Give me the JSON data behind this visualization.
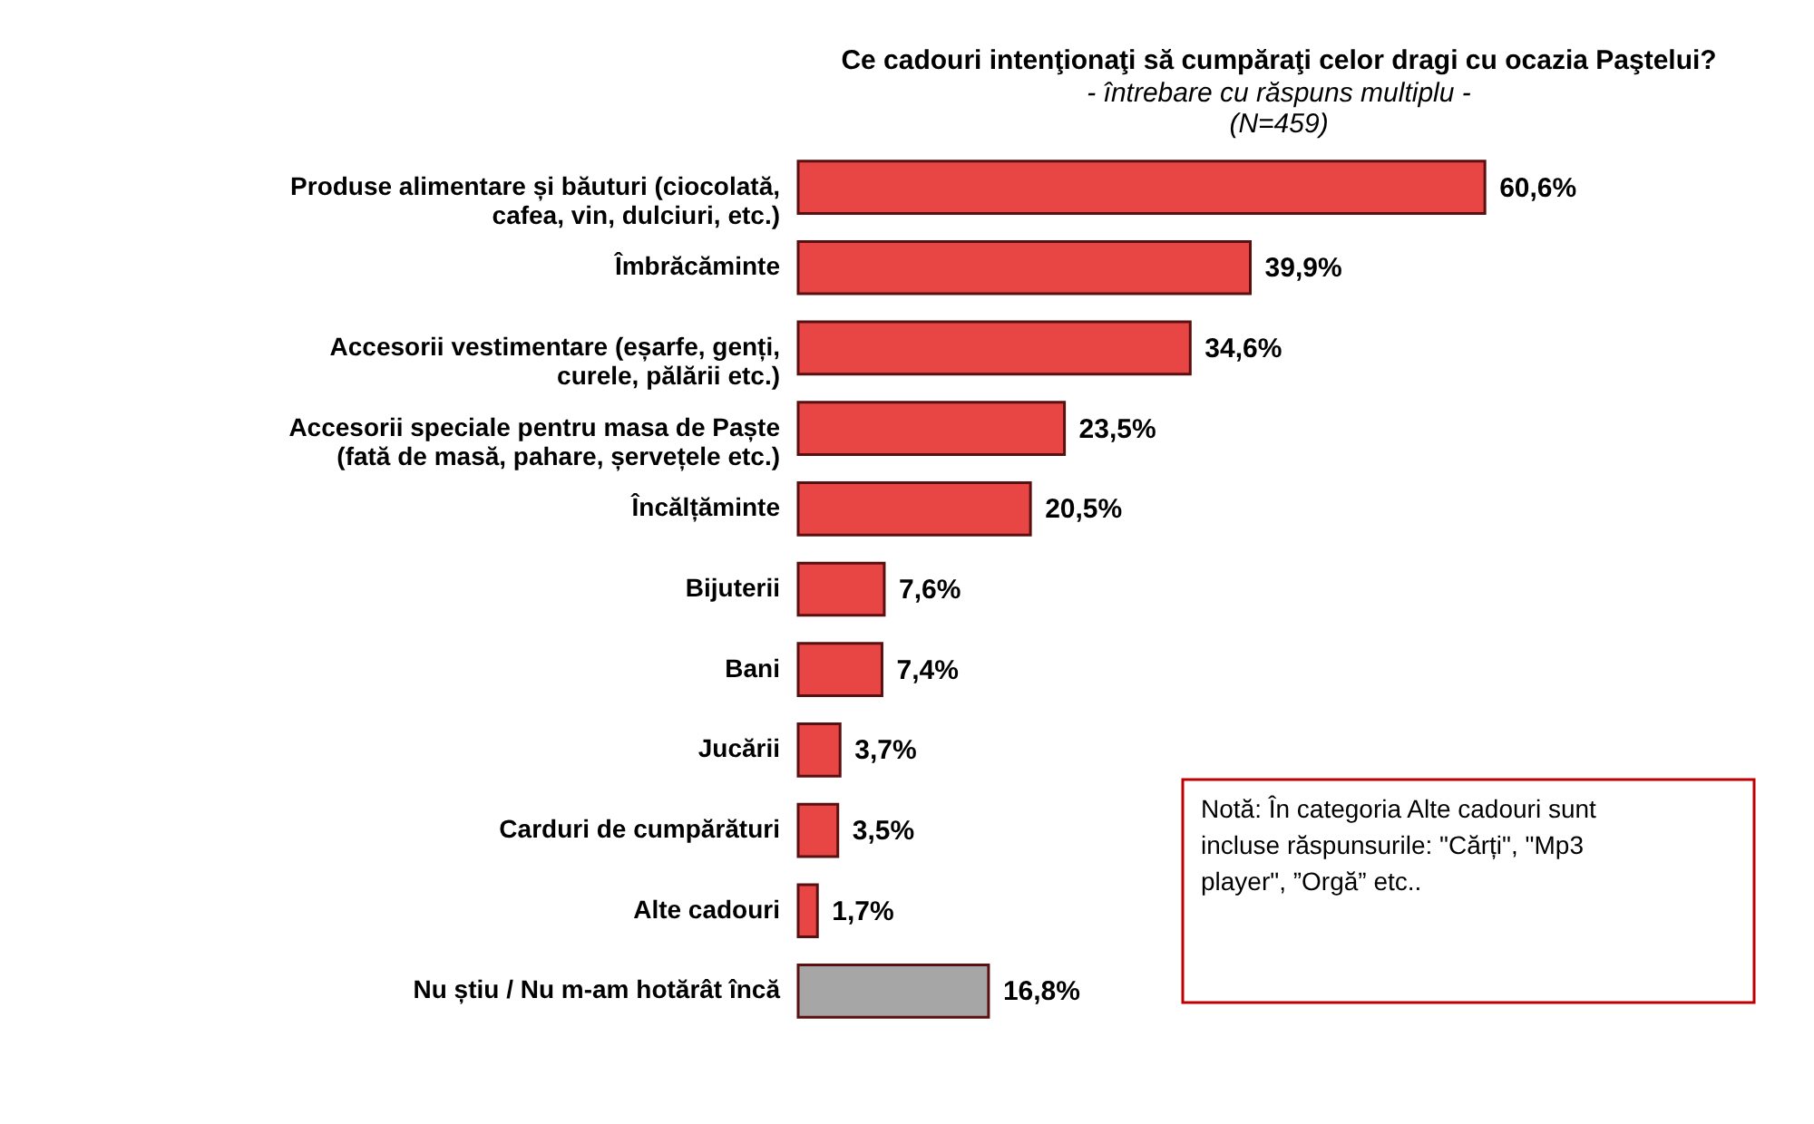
{
  "chart_data": {
    "type": "bar",
    "orientation": "horizontal",
    "data_labels": true,
    "title": "Ce cadouri intenţionaţi să cumpăraţi celor dragi cu ocazia Paştelui?",
    "subtitle": "- întrebare cu răspuns multiplu -",
    "categories": [
      "Produse alimentare și băuturi (ciocolată, cafea, vin, dulciuri, etc.)",
      "Îmbrăcăminte",
      "Accesorii vestimentare (eșarfe, genți, curele, pălării etc.)",
      "Accesorii speciale pentru masa de Paște (fată de masă, pahare, șervețele etc.)",
      "Încălțăminte",
      "Bijuterii",
      "Bani",
      "Jucării",
      "Carduri de cumpărături",
      "Alte cadouri",
      "Nu știu / Nu m-am hotărât încă"
    ],
    "values": [
      60.6,
      39.9,
      34.6,
      23.5,
      20.5,
      7.6,
      7.4,
      3.7,
      3.5,
      1.7,
      16.8
    ],
    "value_labels": [
      "60,6%",
      "39,9%",
      "34,6%",
      "23,5%",
      "20,5%",
      "7,6%",
      "7,4%",
      "3,7%",
      "3,5%",
      "1,7%",
      "16,8%"
    ],
    "colors": [
      "#e84545",
      "#e84545",
      "#e84545",
      "#e84545",
      "#e84545",
      "#e84545",
      "#e84545",
      "#e84545",
      "#e84545",
      "#e84545",
      "#a6a6a6"
    ],
    "annotations": [
      "(N=459)",
      "Notă: În categoria Alte cadouri sunt incluse răspunsurile: \"Cărți\", \"Mp3 player\", ”Orgă” etc.."
    ]
  }
}
